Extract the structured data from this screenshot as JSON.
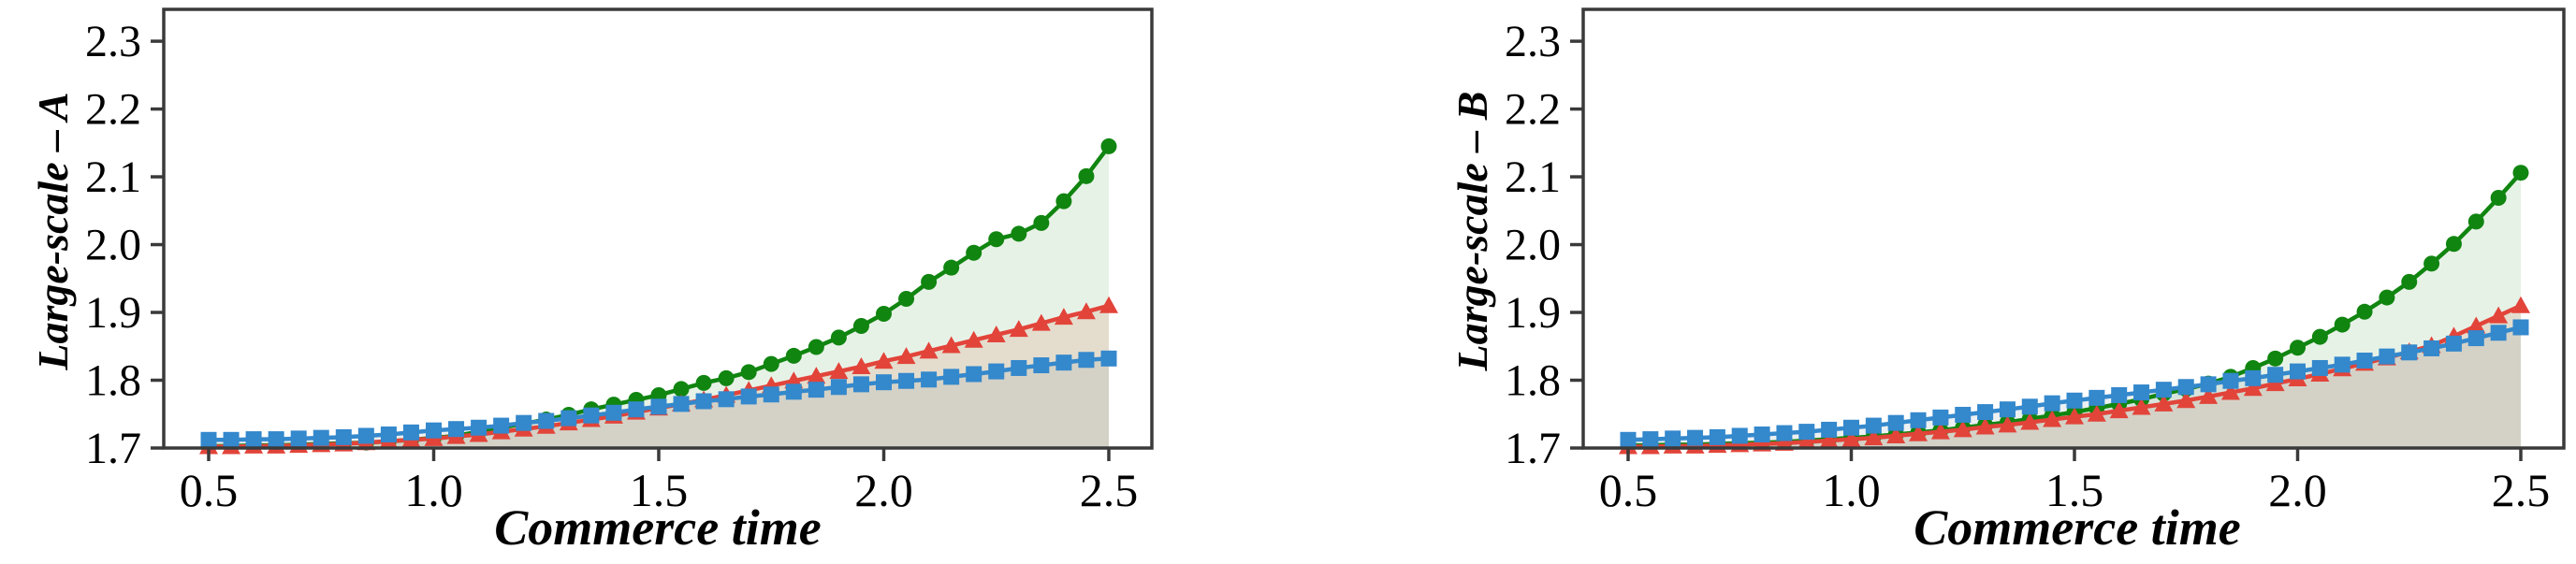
{
  "page": {
    "background": "#ffffff",
    "axis_color": "#3a3a3a",
    "text_color": "#000000"
  },
  "chart_data": [
    {
      "id": "A",
      "type": "line",
      "xlabel": "Commerce time",
      "ylabel": "Large-scale – A",
      "xlim": [
        0.4,
        2.6
      ],
      "ylim": [
        1.7,
        2.347
      ],
      "grid": false,
      "legend": "none",
      "x_tick_labels": [
        "0.5",
        "1.0",
        "1.5",
        "2.0",
        "2.5"
      ],
      "x_ticks": [
        0.5,
        1.0,
        1.5,
        2.0,
        2.5
      ],
      "y_tick_labels": [
        "1.7",
        "1.8",
        "1.9",
        "2.0",
        "2.1",
        "2.2",
        "2.3"
      ],
      "y_ticks": [
        1.7,
        1.8,
        1.9,
        2.0,
        2.1,
        2.2,
        2.3
      ],
      "x": [
        0.5,
        0.55,
        0.6,
        0.65,
        0.7,
        0.75,
        0.8,
        0.85,
        0.9,
        0.95,
        1.0,
        1.05,
        1.1,
        1.15,
        1.2,
        1.25,
        1.3,
        1.35,
        1.4,
        1.45,
        1.5,
        1.55,
        1.6,
        1.65,
        1.7,
        1.75,
        1.8,
        1.85,
        1.9,
        1.95,
        2.0,
        2.05,
        2.1,
        2.15,
        2.2,
        2.25,
        2.3,
        2.35,
        2.4,
        2.45,
        2.5
      ],
      "series": [
        {
          "name": "green-circle",
          "marker": "circle",
          "color": "#108510",
          "area_fill": "rgba(20,130,20,0.10)",
          "values": [
            1.703,
            1.703,
            1.704,
            1.704,
            1.705,
            1.706,
            1.707,
            1.708,
            1.71,
            1.712,
            1.715,
            1.718,
            1.724,
            1.73,
            1.736,
            1.742,
            1.749,
            1.757,
            1.764,
            1.771,
            1.778,
            1.787,
            1.796,
            1.803,
            1.812,
            1.824,
            1.836,
            1.849,
            1.863,
            1.88,
            1.898,
            1.92,
            1.945,
            1.966,
            1.988,
            2.008,
            2.016,
            2.032,
            2.064,
            2.101,
            2.145
          ]
        },
        {
          "name": "red-triangle",
          "marker": "triangle",
          "color": "#e2443a",
          "area_fill": "rgba(210,100,60,0.14)",
          "values": [
            1.702,
            1.702,
            1.703,
            1.703,
            1.704,
            1.705,
            1.706,
            1.708,
            1.71,
            1.712,
            1.714,
            1.717,
            1.72,
            1.724,
            1.728,
            1.732,
            1.737,
            1.742,
            1.747,
            1.753,
            1.759,
            1.765,
            1.771,
            1.778,
            1.785,
            1.792,
            1.799,
            1.806,
            1.813,
            1.82,
            1.828,
            1.835,
            1.843,
            1.851,
            1.859,
            1.867,
            1.875,
            1.884,
            1.893,
            1.901,
            1.91
          ]
        },
        {
          "name": "blue-square",
          "marker": "square",
          "color": "#3488cc",
          "area_fill": "rgba(100,130,150,0.12)",
          "values": [
            1.712,
            1.712,
            1.713,
            1.713,
            1.714,
            1.715,
            1.716,
            1.718,
            1.72,
            1.723,
            1.726,
            1.728,
            1.73,
            1.733,
            1.737,
            1.74,
            1.744,
            1.748,
            1.752,
            1.757,
            1.761,
            1.765,
            1.769,
            1.772,
            1.776,
            1.779,
            1.783,
            1.786,
            1.79,
            1.794,
            1.797,
            1.799,
            1.801,
            1.805,
            1.809,
            1.813,
            1.818,
            1.822,
            1.826,
            1.83,
            1.832
          ]
        }
      ]
    },
    {
      "id": "B",
      "type": "line",
      "xlabel": "Commerce time",
      "ylabel": "Large-scale – B",
      "xlim": [
        0.4,
        2.6
      ],
      "ylim": [
        1.7,
        2.347
      ],
      "grid": false,
      "legend": "none",
      "x_tick_labels": [
        "0.5",
        "1.0",
        "1.5",
        "2.0",
        "2.5"
      ],
      "x_ticks": [
        0.5,
        1.0,
        1.5,
        2.0,
        2.5
      ],
      "y_tick_labels": [
        "1.7",
        "1.8",
        "1.9",
        "2.0",
        "2.1",
        "2.2",
        "2.3"
      ],
      "y_ticks": [
        1.7,
        1.8,
        1.9,
        2.0,
        2.1,
        2.2,
        2.3
      ],
      "x": [
        0.5,
        0.55,
        0.6,
        0.65,
        0.7,
        0.75,
        0.8,
        0.85,
        0.9,
        0.95,
        1.0,
        1.05,
        1.1,
        1.15,
        1.2,
        1.25,
        1.3,
        1.35,
        1.4,
        1.45,
        1.5,
        1.55,
        1.6,
        1.65,
        1.7,
        1.75,
        1.8,
        1.85,
        1.9,
        1.95,
        2.0,
        2.05,
        2.1,
        2.15,
        2.2,
        2.25,
        2.3,
        2.35,
        2.4,
        2.45,
        2.5
      ],
      "series": [
        {
          "name": "green-circle",
          "marker": "circle",
          "color": "#108510",
          "area_fill": "rgba(20,130,20,0.10)",
          "values": [
            1.704,
            1.704,
            1.705,
            1.705,
            1.706,
            1.707,
            1.708,
            1.709,
            1.711,
            1.713,
            1.715,
            1.717,
            1.72,
            1.723,
            1.726,
            1.73,
            1.734,
            1.738,
            1.743,
            1.748,
            1.753,
            1.759,
            1.765,
            1.772,
            1.78,
            1.787,
            1.795,
            1.805,
            1.818,
            1.832,
            1.848,
            1.864,
            1.882,
            1.901,
            1.922,
            1.945,
            1.972,
            2.001,
            2.034,
            2.069,
            2.106
          ]
        },
        {
          "name": "red-triangle",
          "marker": "triangle",
          "color": "#e2443a",
          "area_fill": "rgba(210,100,60,0.14)",
          "values": [
            1.702,
            1.702,
            1.703,
            1.703,
            1.704,
            1.705,
            1.706,
            1.707,
            1.709,
            1.711,
            1.713,
            1.715,
            1.718,
            1.721,
            1.724,
            1.727,
            1.731,
            1.734,
            1.738,
            1.742,
            1.746,
            1.75,
            1.755,
            1.76,
            1.765,
            1.77,
            1.776,
            1.782,
            1.788,
            1.795,
            1.802,
            1.809,
            1.817,
            1.825,
            1.833,
            1.842,
            1.851,
            1.865,
            1.88,
            1.895,
            1.91
          ]
        },
        {
          "name": "blue-square",
          "marker": "square",
          "color": "#3488cc",
          "area_fill": "rgba(100,130,150,0.12)",
          "values": [
            1.712,
            1.713,
            1.714,
            1.715,
            1.716,
            1.718,
            1.72,
            1.722,
            1.724,
            1.727,
            1.73,
            1.733,
            1.737,
            1.741,
            1.745,
            1.749,
            1.753,
            1.757,
            1.761,
            1.766,
            1.77,
            1.774,
            1.778,
            1.782,
            1.786,
            1.79,
            1.794,
            1.799,
            1.803,
            1.808,
            1.813,
            1.818,
            1.823,
            1.829,
            1.835,
            1.841,
            1.847,
            1.854,
            1.862,
            1.87,
            1.878
          ]
        }
      ]
    }
  ]
}
